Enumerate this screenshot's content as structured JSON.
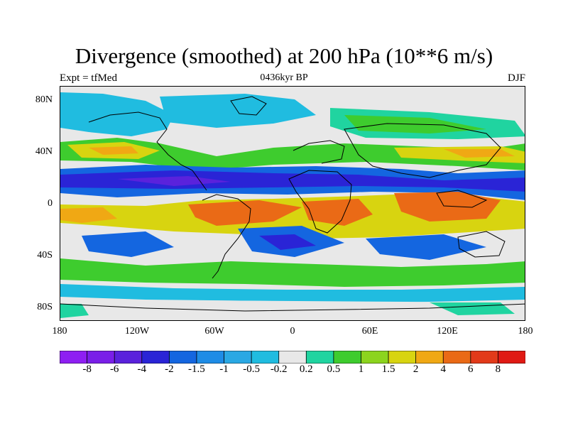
{
  "title": "Divergence (smoothed) at 200 hPa (10**6 m/s)",
  "left_label": "Expt = tfMed",
  "center_label": "0436kyr BP",
  "right_label": "DJF",
  "y_ticks": [
    "80N",
    "40N",
    "0",
    "40S",
    "80S"
  ],
  "x_ticks": [
    "180",
    "120W",
    "60W",
    "0",
    "60E",
    "120E",
    "180"
  ],
  "colorbar": {
    "labels": [
      "-8",
      "-6",
      "-4",
      "-2",
      "-1.5",
      "-1",
      "-0.5",
      "-0.2",
      "0.2",
      "0.5",
      "1",
      "1.5",
      "2",
      "4",
      "6",
      "8"
    ],
    "colors": [
      "#8e1ff2",
      "#7a1fe8",
      "#5a22dc",
      "#2a24d6",
      "#1466e0",
      "#1e8ce6",
      "#2aa8e4",
      "#20bce0",
      "#e8e8e8",
      "#20d4a0",
      "#3ecc2e",
      "#8cd41e",
      "#d8d410",
      "#f0a814",
      "#ea6a16",
      "#e23a1a",
      "#e01a14"
    ]
  },
  "palette": {
    "strong_neg": "#2a24d6",
    "neg": "#1466e0",
    "weak_neg": "#20bce0",
    "neutral": "#e8e8e8",
    "weak_pos": "#20d4a0",
    "pos": "#3ecc2e",
    "mid_pos": "#d8d410",
    "strong_pos": "#ea6a16"
  }
}
